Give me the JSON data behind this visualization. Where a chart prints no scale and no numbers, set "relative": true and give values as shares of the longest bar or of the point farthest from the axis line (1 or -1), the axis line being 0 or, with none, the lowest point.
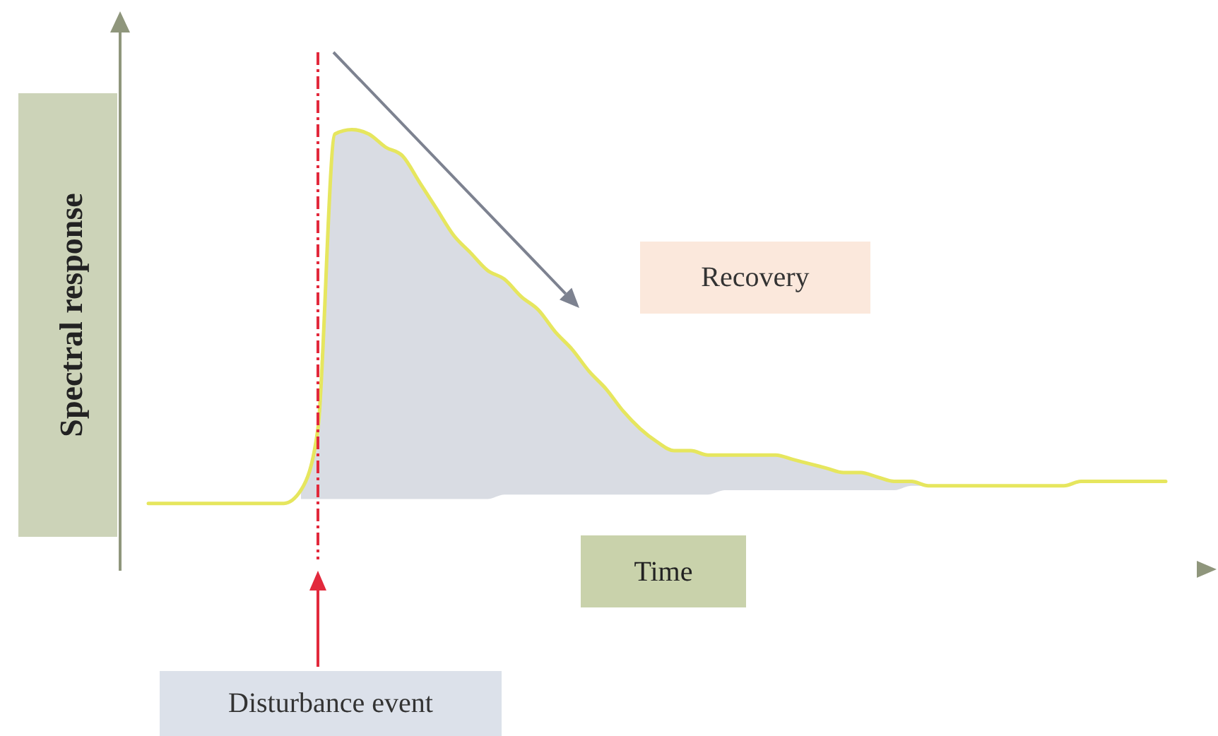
{
  "chart_data": {
    "type": "line",
    "relative": true,
    "categories": [
      null,
      null,
      null,
      null,
      null,
      null,
      null,
      null,
      null,
      null,
      null,
      null,
      null,
      null,
      null,
      null,
      null,
      null,
      null,
      null,
      null,
      null,
      null,
      null,
      null,
      null,
      null,
      null,
      null,
      null,
      null,
      null,
      null,
      null,
      null,
      null,
      null,
      null,
      null,
      null,
      null,
      null,
      null,
      null,
      null,
      null,
      null,
      null,
      null,
      null,
      null,
      null,
      null,
      null,
      null,
      null,
      null,
      null,
      null,
      null,
      null
    ],
    "series": [
      {
        "color": "#e6e65e",
        "values": [
          0.15,
          0.15,
          0.15,
          0.15,
          0.15,
          0.15,
          0.15,
          0.15,
          0.15,
          0.18,
          0.32,
          0.99,
          1,
          0.99,
          0.96,
          0.94,
          0.88,
          0.82,
          0.76,
          0.72,
          0.68,
          0.66,
          0.62,
          0.59,
          0.54,
          0.5,
          0.45,
          0.41,
          0.36,
          0.32,
          0.29,
          0.27,
          0.27,
          0.26,
          0.26,
          0.26,
          0.26,
          0.26,
          0.25,
          0.24,
          0.23,
          0.22,
          0.22,
          0.21,
          0.2,
          0.2,
          0.19,
          0.19,
          0.19,
          0.19,
          0.19,
          0.19,
          0.19,
          0.19,
          0.19,
          0.2,
          0.2,
          0.2,
          0.2,
          0.2,
          0.2
        ],
        "lower": [
          null,
          null,
          null,
          null,
          null,
          null,
          null,
          null,
          null,
          0.16,
          0.16,
          0.16,
          0.16,
          0.16,
          0.16,
          0.16,
          0.16,
          0.16,
          0.16,
          0.16,
          0.16,
          0.17,
          0.17,
          0.17,
          0.17,
          0.17,
          0.17,
          0.17,
          0.17,
          0.17,
          0.17,
          0.17,
          0.17,
          0.17,
          0.18,
          0.18,
          0.18,
          0.18,
          0.18,
          0.18,
          0.18,
          0.18,
          0.18,
          0.18,
          0.18,
          0.19,
          0.19,
          null,
          null,
          null,
          null,
          null,
          null,
          null,
          null,
          null,
          null,
          null,
          null,
          null,
          null
        ],
        "upper": [
          null,
          null,
          null,
          null,
          null,
          null,
          null,
          null,
          null,
          0.18,
          0.32,
          0.99,
          1,
          0.99,
          0.96,
          0.94,
          0.88,
          0.82,
          0.76,
          0.72,
          0.68,
          0.66,
          0.62,
          0.59,
          0.54,
          0.5,
          0.45,
          0.41,
          0.36,
          0.32,
          0.29,
          0.27,
          0.27,
          0.26,
          0.26,
          0.26,
          0.26,
          0.26,
          0.25,
          0.24,
          0.23,
          0.22,
          0.22,
          0.21,
          0.2,
          0.2,
          0.19,
          null,
          null,
          null,
          null,
          null,
          null,
          null,
          null,
          null,
          null,
          null,
          null,
          null,
          null
        ]
      }
    ],
    "xlabel": "Time",
    "ylabel": "Spectral response",
    "annotations": [
      "Recovery",
      "Disturbance event"
    ],
    "marker": "none"
  }
}
